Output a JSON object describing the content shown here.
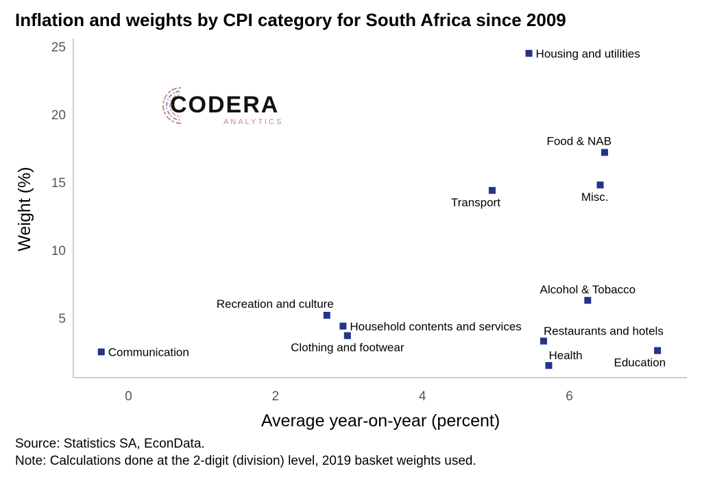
{
  "header": {
    "title": "Inflation and weights by CPI category for South Africa since 2009"
  },
  "logo": {
    "word": "CODERA",
    "sub": "ANALYTICS"
  },
  "footer": {
    "source": "Source: Statistics SA, EconData.",
    "note": "Note: Calculations done at the 2-digit (division) level, 2019 basket weights used."
  },
  "colors": {
    "point": "#24338c",
    "axis": "#cccccc",
    "tick_label": "#555555"
  },
  "chart_data": {
    "type": "scatter",
    "title": "Inflation and weights by CPI category for South Africa since 2009",
    "xlabel": "Average year-on-year (percent)",
    "ylabel": "Weight (%)",
    "xlim": [
      -0.75,
      7.6
    ],
    "ylim": [
      0.6,
      25.5
    ],
    "xticks": [
      0,
      2,
      4,
      6
    ],
    "yticks": [
      5,
      10,
      15,
      20,
      25
    ],
    "grid": false,
    "points": [
      {
        "label": "Housing and utilities",
        "x": 5.45,
        "y": 24.5,
        "anchor": "right"
      },
      {
        "label": "Food & NAB",
        "x": 6.48,
        "y": 17.2,
        "anchor": "above-left"
      },
      {
        "label": "Misc.",
        "x": 6.42,
        "y": 14.8,
        "anchor": "below-left"
      },
      {
        "label": "Transport",
        "x": 4.95,
        "y": 14.4,
        "anchor": "below-left"
      },
      {
        "label": "Alcohol & Tobacco",
        "x": 6.25,
        "y": 6.3,
        "anchor": "above"
      },
      {
        "label": "Recreation and culture",
        "x": 2.7,
        "y": 5.2,
        "anchor": "above-left"
      },
      {
        "label": "Household contents and services",
        "x": 2.92,
        "y": 4.4,
        "anchor": "right"
      },
      {
        "label": "Clothing and footwear",
        "x": 2.98,
        "y": 3.7,
        "anchor": "below"
      },
      {
        "label": "Restaurants and hotels",
        "x": 5.65,
        "y": 3.3,
        "anchor": "above-right"
      },
      {
        "label": "Communication",
        "x": -0.37,
        "y": 2.5,
        "anchor": "right"
      },
      {
        "label": "Education",
        "x": 7.2,
        "y": 2.6,
        "anchor": "below-left"
      },
      {
        "label": "Health",
        "x": 5.72,
        "y": 1.5,
        "anchor": "above-right"
      }
    ]
  }
}
